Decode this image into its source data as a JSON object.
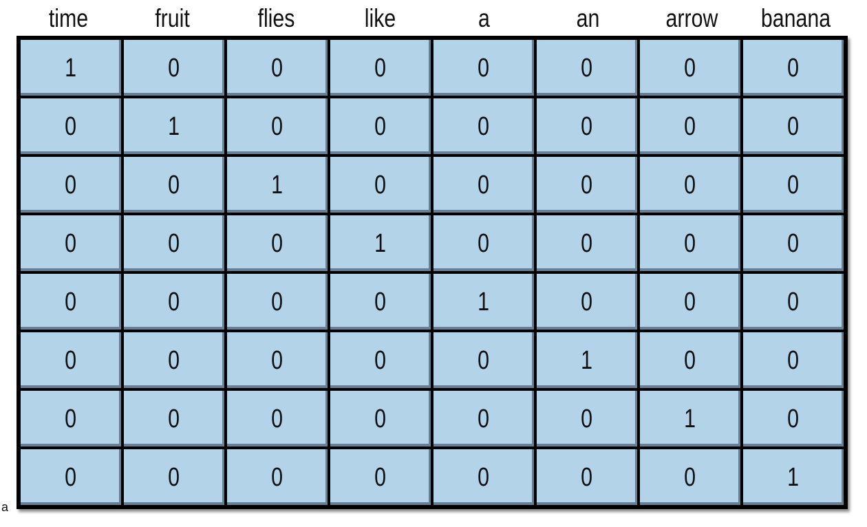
{
  "header": {
    "columns": [
      "time",
      "fruit",
      "flies",
      "like",
      "a",
      "an",
      "arrow",
      "banana"
    ]
  },
  "matrix": {
    "rows": [
      [
        "1",
        "0",
        "0",
        "0",
        "0",
        "0",
        "0",
        "0"
      ],
      [
        "0",
        "1",
        "0",
        "0",
        "0",
        "0",
        "0",
        "0"
      ],
      [
        "0",
        "0",
        "1",
        "0",
        "0",
        "0",
        "0",
        "0"
      ],
      [
        "0",
        "0",
        "0",
        "1",
        "0",
        "0",
        "0",
        "0"
      ],
      [
        "0",
        "0",
        "0",
        "0",
        "1",
        "0",
        "0",
        "0"
      ],
      [
        "0",
        "0",
        "0",
        "0",
        "0",
        "1",
        "0",
        "0"
      ],
      [
        "0",
        "0",
        "0",
        "0",
        "0",
        "0",
        "1",
        "0"
      ],
      [
        "0",
        "0",
        "0",
        "0",
        "0",
        "0",
        "0",
        "1"
      ]
    ]
  },
  "side_label": "a",
  "colors": {
    "cell_fill": "#b3d3e8",
    "border": "#000000"
  }
}
